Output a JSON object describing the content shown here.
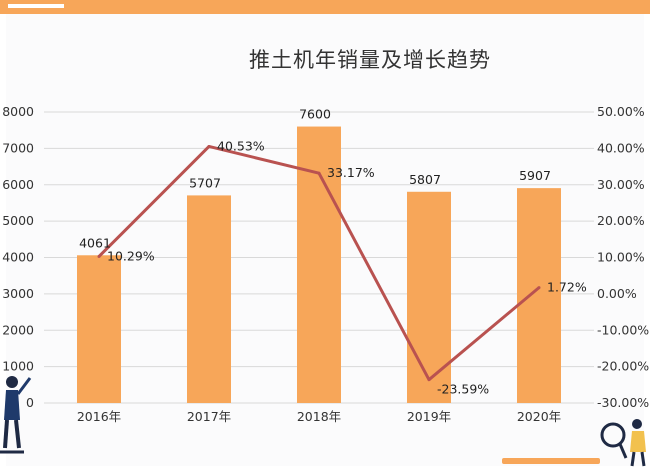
{
  "colors": {
    "accent": "#f7a659",
    "line": "#b95250",
    "grid": "#d9d9d9"
  },
  "icons": [
    "person-pointing-illustration",
    "person-magnifier-illustration"
  ],
  "chart_data": {
    "type": "bar",
    "title": "推土机年销量及增长趋势",
    "categories": [
      "2016年",
      "2017年",
      "2018年",
      "2019年",
      "2020年"
    ],
    "series": [
      {
        "type": "bar",
        "axis": "left",
        "values": [
          4061,
          5707,
          7600,
          5807,
          5907
        ],
        "labels": [
          "4061",
          "5707",
          "7600",
          "5807",
          "5907"
        ]
      },
      {
        "type": "line",
        "axis": "right",
        "values": [
          10.29,
          40.53,
          33.17,
          -23.59,
          1.72
        ],
        "labels": [
          "10.29%",
          "40.53%",
          "33.17%",
          "-23.59%",
          "1.72%"
        ]
      }
    ],
    "y_left": {
      "range": [
        0,
        8000
      ],
      "ticks": [
        "0",
        "1000",
        "2000",
        "3000",
        "4000",
        "5000",
        "6000",
        "7000",
        "8000"
      ]
    },
    "y_right": {
      "range": [
        -30,
        50
      ],
      "ticks": [
        "-30.00%",
        "-20.00%",
        "-10.00%",
        "0.00%",
        "10.00%",
        "20.00%",
        "30.00%",
        "40.00%",
        "50.00%"
      ]
    },
    "grid": true
  }
}
